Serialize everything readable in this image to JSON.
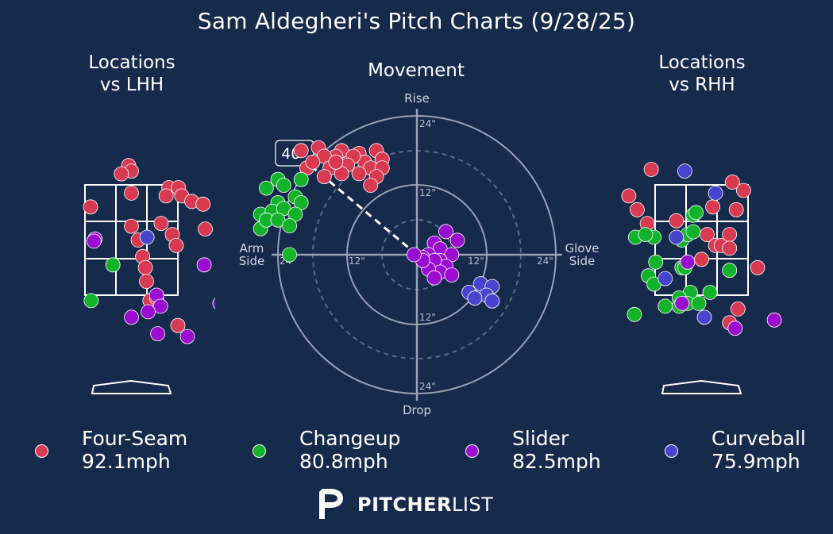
{
  "title": "Sam Aldegheri's Pitch Charts (9/28/25)",
  "panels": {
    "lhh_title_line1": "Locations",
    "lhh_title_line2": "vs LHH",
    "movement_title": "Movement",
    "rhh_title_line1": "Locations",
    "rhh_title_line2": "vs RHH"
  },
  "movement_labels": {
    "rise": "Rise",
    "drop": "Drop",
    "arm_side_line1": "Arm",
    "arm_side_line2": "Side",
    "glove_side_line1": "Glove",
    "glove_side_line2": "Side",
    "rings": [
      "12\"",
      "24\""
    ],
    "arm_angle": "40°"
  },
  "colors": {
    "Four-Seam": "#d83a52",
    "Changeup": "#12b22a",
    "Slider": "#9a0cd0",
    "Curveball": "#4646cc",
    "background": "#162a4c"
  },
  "legend": [
    {
      "pitch": "Four-Seam",
      "speed": "92.1mph"
    },
    {
      "pitch": "Changeup",
      "speed": "80.8mph"
    },
    {
      "pitch": "Slider",
      "speed": "82.5mph"
    },
    {
      "pitch": "Curveball",
      "speed": "75.9mph"
    }
  ],
  "brand": {
    "bold": "PITCHER",
    "light": "LIST"
  },
  "chart_data": [
    {
      "type": "scatter",
      "title": "Locations vs LHH",
      "x_unit": "ft from plate center (catcher view)",
      "y_unit": "ft above ground",
      "zone": {
        "x": [
          -0.83,
          0.83
        ],
        "y": [
          1.5,
          3.5
        ]
      },
      "series": [
        {
          "name": "Four-Seam",
          "points": [
            [
              -0.05,
              3.85
            ],
            [
              0.0,
              3.75
            ],
            [
              -0.18,
              3.7
            ],
            [
              0.0,
              3.35
            ],
            [
              0.67,
              3.45
            ],
            [
              0.84,
              3.45
            ],
            [
              0.9,
              3.3
            ],
            [
              0.62,
              3.3
            ],
            [
              1.08,
              3.2
            ],
            [
              1.28,
              3.15
            ],
            [
              -0.73,
              3.1
            ],
            [
              0.0,
              2.75
            ],
            [
              0.53,
              2.8
            ],
            [
              0.73,
              2.6
            ],
            [
              1.32,
              2.7
            ],
            [
              0.12,
              2.5
            ],
            [
              0.8,
              2.4
            ],
            [
              0.2,
              2.2
            ],
            [
              0.25,
              2.0
            ],
            [
              0.27,
              1.75
            ],
            [
              0.33,
              1.4
            ],
            [
              0.45,
              1.45
            ],
            [
              0.83,
              0.95
            ]
          ]
        },
        {
          "name": "Changeup",
          "points": [
            [
              -0.33,
              2.05
            ],
            [
              -0.72,
              1.4
            ]
          ]
        },
        {
          "name": "Slider",
          "points": [
            [
              -0.65,
              2.52
            ],
            [
              -0.67,
              2.48
            ],
            [
              1.3,
              2.05
            ],
            [
              0.45,
              1.5
            ],
            [
              0.52,
              1.3
            ],
            [
              0.3,
              1.2
            ],
            [
              0.0,
              1.1
            ],
            [
              1.58,
              1.35
            ],
            [
              0.47,
              0.8
            ],
            [
              1.0,
              0.75
            ],
            [
              0.22,
              -0.75
            ],
            [
              0.95,
              -1.3
            ]
          ]
        },
        {
          "name": "Curveball",
          "points": [
            [
              0.28,
              2.55
            ]
          ]
        }
      ]
    },
    {
      "type": "scatter",
      "title": "Movement",
      "x_unit": "inches horizontal break (arm side negative)",
      "y_unit": "inches induced vertical break",
      "rings_in": [
        12,
        24
      ],
      "arm_angle_deg": 40,
      "series": [
        {
          "name": "Four-Seam",
          "points": [
            [
              -20,
              18
            ],
            [
              -17,
              18.5
            ],
            [
              -13,
              18
            ],
            [
              -10,
              17.5
            ],
            [
              -7,
              18
            ],
            [
              -6,
              16.5
            ],
            [
              -9,
              16
            ],
            [
              -11,
              17
            ],
            [
              -14,
              17
            ],
            [
              -16,
              17
            ],
            [
              -19,
              15
            ],
            [
              -12,
              15.5
            ],
            [
              -15,
              15
            ],
            [
              -8,
              15
            ],
            [
              -10,
              14
            ],
            [
              -13,
              14
            ],
            [
              -6,
              15
            ],
            [
              -7,
              13.5
            ],
            [
              -14,
              16
            ],
            [
              -18,
              16
            ],
            [
              -16,
              13.5
            ],
            [
              -8,
              12
            ]
          ]
        },
        {
          "name": "Changeup",
          "points": [
            [
              -26,
              11.5
            ],
            [
              -24,
              13
            ],
            [
              -23,
              12
            ],
            [
              -20,
              13
            ],
            [
              -24,
              9
            ],
            [
              -27,
              7
            ],
            [
              -25,
              7.5
            ],
            [
              -23,
              8
            ],
            [
              -21,
              10
            ],
            [
              -20,
              9
            ],
            [
              -27,
              4.5
            ],
            [
              -26,
              6
            ],
            [
              -24,
              6
            ],
            [
              -21,
              7
            ],
            [
              -22,
              5
            ],
            [
              -22,
              0
            ]
          ]
        },
        {
          "name": "Slider",
          "points": [
            [
              5,
              4
            ],
            [
              7,
              2.5
            ],
            [
              3,
              2
            ],
            [
              4,
              1
            ],
            [
              6,
              0
            ],
            [
              2,
              0
            ],
            [
              4,
              -1
            ],
            [
              5,
              -2
            ],
            [
              1,
              -0.5
            ],
            [
              3,
              -1
            ],
            [
              4,
              -3
            ],
            [
              6,
              -3.5
            ],
            [
              2,
              -2.5
            ],
            [
              1,
              -1
            ],
            [
              -0.5,
              0
            ],
            [
              3,
              -4
            ]
          ]
        },
        {
          "name": "Curveball",
          "points": [
            [
              11,
              -5
            ],
            [
              13,
              -5.5
            ],
            [
              9,
              -6.5
            ],
            [
              12,
              -7
            ],
            [
              10,
              -7.5
            ],
            [
              13,
              -8
            ]
          ]
        }
      ]
    },
    {
      "type": "scatter",
      "title": "Locations vs RHH",
      "x_unit": "ft from plate center (catcher view)",
      "y_unit": "ft above ground",
      "zone": {
        "x": [
          -0.83,
          0.83
        ],
        "y": [
          1.5,
          3.5
        ]
      },
      "series": [
        {
          "name": "Four-Seam",
          "points": [
            [
              -0.9,
              3.78
            ],
            [
              0.55,
              3.55
            ],
            [
              0.75,
              3.4
            ],
            [
              -1.3,
              3.3
            ],
            [
              -1.15,
              3.05
            ],
            [
              -0.97,
              2.8
            ],
            [
              0.2,
              3.1
            ],
            [
              0.62,
              3.05
            ],
            [
              -0.45,
              2.85
            ],
            [
              0.1,
              2.6
            ],
            [
              0.25,
              2.4
            ],
            [
              0.35,
              2.4
            ],
            [
              0.5,
              2.6
            ],
            [
              0.5,
              2.35
            ],
            [
              1.0,
              2.0
            ],
            [
              0.0,
              2.15
            ],
            [
              0.65,
              1.25
            ],
            [
              0.5,
              1.0
            ]
          ]
        },
        {
          "name": "Changeup",
          "points": [
            [
              -0.15,
              2.95
            ],
            [
              -0.1,
              3.0
            ],
            [
              -0.85,
              2.55
            ],
            [
              -1.18,
              2.55
            ],
            [
              -1.0,
              2.6
            ],
            [
              -0.35,
              2.5
            ],
            [
              -0.25,
              2.6
            ],
            [
              -0.15,
              2.65
            ],
            [
              -0.82,
              2.1
            ],
            [
              -0.35,
              2.0
            ],
            [
              -0.3,
              2.0
            ],
            [
              0.5,
              1.95
            ],
            [
              -0.95,
              1.85
            ],
            [
              -0.85,
              1.7
            ],
            [
              -0.2,
              1.55
            ],
            [
              -0.4,
              1.45
            ],
            [
              -0.25,
              1.35
            ],
            [
              0.15,
              1.55
            ],
            [
              -0.4,
              1.3
            ],
            [
              -0.05,
              1.35
            ],
            [
              -0.65,
              1.3
            ],
            [
              -1.2,
              1.15
            ]
          ]
        },
        {
          "name": "Slider",
          "points": [
            [
              -0.25,
              2.1
            ],
            [
              -0.35,
              1.35
            ],
            [
              1.3,
              1.05
            ],
            [
              0.6,
              0.9
            ],
            [
              0.4,
              -0.75
            ]
          ]
        },
        {
          "name": "Curveball",
          "points": [
            [
              -0.3,
              3.75
            ],
            [
              -0.45,
              2.55
            ],
            [
              0.25,
              3.35
            ],
            [
              -0.65,
              1.8
            ],
            [
              0.05,
              1.1
            ]
          ]
        }
      ]
    }
  ]
}
